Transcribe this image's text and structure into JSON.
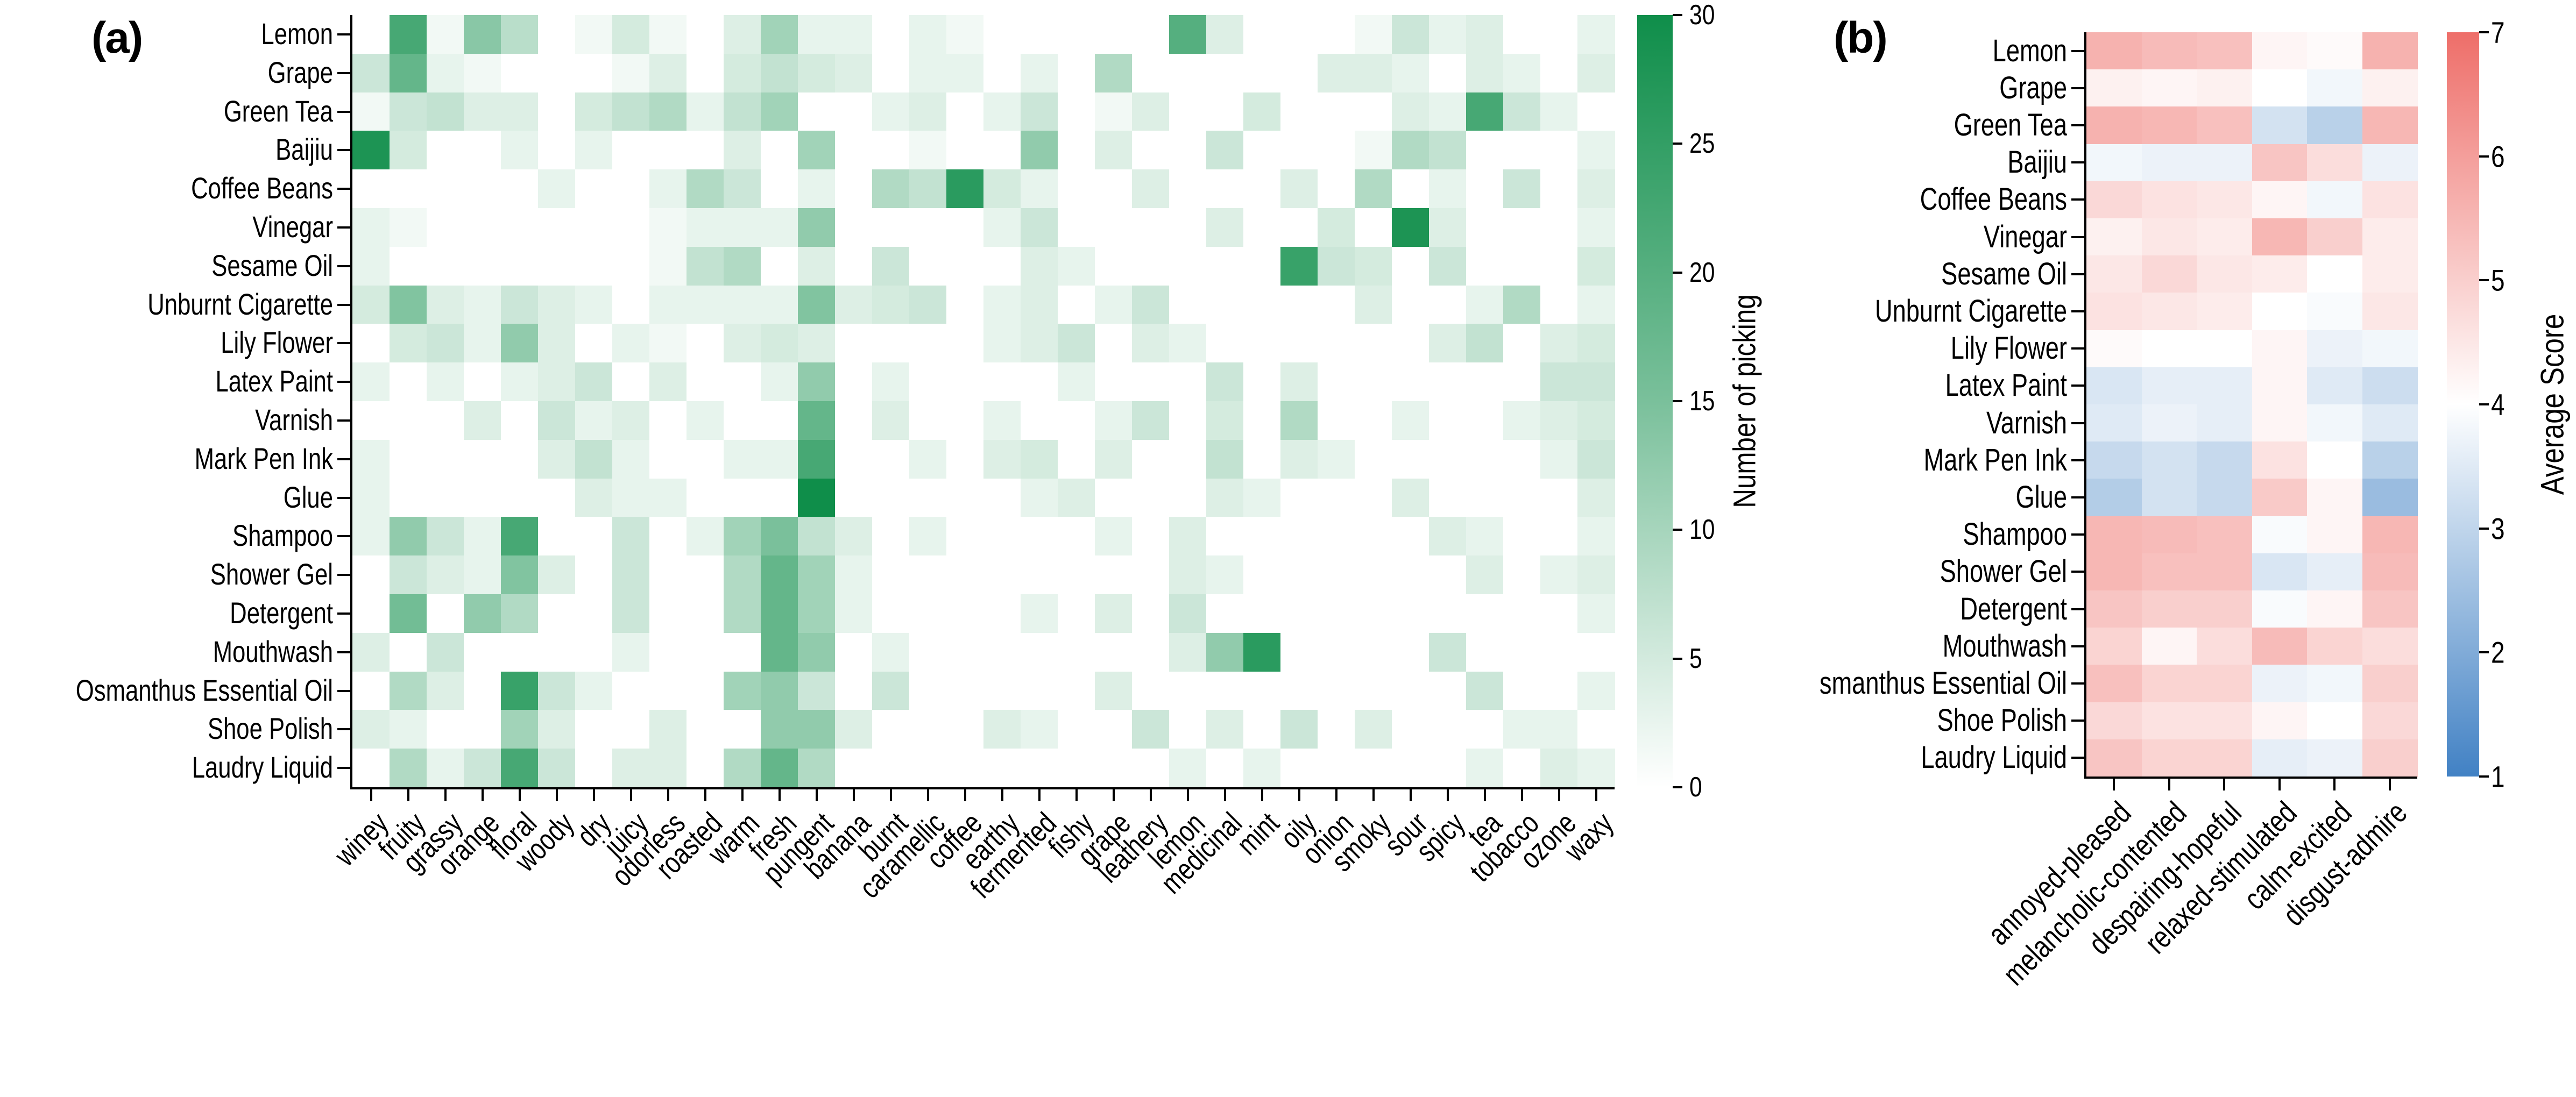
{
  "figure": {
    "background": "#ffffff",
    "text_color": "#000000"
  },
  "chart_data": [
    {
      "type": "heatmap",
      "panel_label": "(a)",
      "colorbar_title": "Number of picking",
      "colorbar_ticks": [
        30,
        25,
        20,
        15,
        10,
        5,
        0
      ],
      "vmin": 0,
      "vmax": 30,
      "colormap": {
        "low": "#ffffff",
        "high": "#0f8e4a"
      },
      "rows": [
        "Lemon",
        "Grape",
        "Green Tea",
        "Baijiu",
        "Coffee Beans",
        "Vinegar",
        "Sesame Oil",
        "Unburnt Cigarette",
        "Lily Flower",
        "Latex Paint",
        "Varnish",
        "Mark Pen Ink",
        "Glue",
        "Shampoo",
        "Shower Gel",
        "Detergent",
        "Mouthwash",
        "Osmanthus Essential Oil",
        "Shoe Polish",
        "Laudry Liquid"
      ],
      "columns": [
        "winey",
        "fruity",
        "grassy",
        "orange",
        "floral",
        "woody",
        "dry",
        "juicy",
        "odorless",
        "roasted",
        "warm",
        "fresh",
        "pungent",
        "banana",
        "burnt",
        "caramellic",
        "coffee",
        "earthy",
        "fermented",
        "fishy",
        "grape",
        "leathery",
        "lemon",
        "medicinal",
        "mint",
        "oily",
        "onion",
        "smoky",
        "sour",
        "spicy",
        "tea",
        "tobacco",
        "ozone",
        "waxy"
      ],
      "values": [
        [
          0,
          22,
          1,
          13,
          7,
          0,
          1,
          4,
          1,
          0,
          3,
          10,
          2,
          2,
          0,
          2,
          1,
          0,
          0,
          0,
          0,
          0,
          20,
          3,
          0,
          0,
          0,
          1,
          5,
          2,
          3,
          0,
          0,
          2
        ],
        [
          5,
          18,
          2,
          1,
          0,
          0,
          0,
          1,
          3,
          0,
          4,
          6,
          4,
          3,
          0,
          2,
          2,
          0,
          2,
          0,
          8,
          0,
          0,
          0,
          0,
          0,
          3,
          3,
          2,
          0,
          3,
          2,
          0,
          3
        ],
        [
          1,
          5,
          6,
          3,
          3,
          0,
          4,
          6,
          8,
          2,
          6,
          10,
          0,
          0,
          2,
          3,
          0,
          2,
          5,
          0,
          1,
          3,
          0,
          0,
          4,
          0,
          0,
          0,
          3,
          2,
          22,
          5,
          2,
          0
        ],
        [
          28,
          4,
          0,
          0,
          2,
          0,
          2,
          0,
          0,
          0,
          3,
          0,
          10,
          0,
          0,
          1,
          0,
          0,
          12,
          0,
          3,
          0,
          0,
          5,
          0,
          0,
          0,
          1,
          8,
          6,
          0,
          0,
          0,
          2
        ],
        [
          0,
          0,
          0,
          0,
          0,
          2,
          0,
          0,
          2,
          8,
          5,
          0,
          2,
          0,
          8,
          6,
          26,
          4,
          2,
          0,
          0,
          3,
          0,
          0,
          0,
          3,
          0,
          8,
          0,
          2,
          0,
          5,
          0,
          3
        ],
        [
          2,
          1,
          0,
          0,
          0,
          0,
          0,
          0,
          1,
          2,
          2,
          2,
          12,
          0,
          0,
          0,
          0,
          2,
          5,
          0,
          0,
          0,
          0,
          3,
          0,
          0,
          4,
          0,
          28,
          3,
          0,
          0,
          0,
          2
        ],
        [
          2,
          0,
          0,
          0,
          0,
          0,
          0,
          0,
          1,
          6,
          8,
          0,
          3,
          0,
          5,
          0,
          0,
          0,
          3,
          2,
          0,
          0,
          0,
          0,
          0,
          24,
          5,
          4,
          0,
          5,
          0,
          0,
          0,
          4
        ],
        [
          4,
          14,
          3,
          2,
          5,
          3,
          2,
          0,
          2,
          2,
          2,
          2,
          14,
          3,
          4,
          5,
          0,
          2,
          3,
          0,
          2,
          5,
          0,
          0,
          0,
          0,
          0,
          3,
          0,
          0,
          2,
          8,
          0,
          2
        ],
        [
          0,
          4,
          5,
          2,
          12,
          3,
          0,
          2,
          1,
          0,
          3,
          4,
          3,
          0,
          0,
          0,
          0,
          2,
          3,
          5,
          0,
          3,
          2,
          0,
          0,
          0,
          0,
          0,
          0,
          3,
          6,
          0,
          3,
          4
        ],
        [
          2,
          0,
          2,
          0,
          2,
          3,
          5,
          0,
          3,
          0,
          0,
          2,
          12,
          0,
          2,
          0,
          0,
          0,
          0,
          2,
          0,
          0,
          0,
          5,
          0,
          3,
          0,
          0,
          0,
          0,
          0,
          0,
          5,
          5
        ],
        [
          0,
          0,
          0,
          3,
          0,
          5,
          2,
          3,
          0,
          2,
          0,
          0,
          18,
          0,
          3,
          0,
          0,
          2,
          0,
          0,
          2,
          5,
          0,
          4,
          0,
          8,
          0,
          0,
          2,
          0,
          0,
          2,
          3,
          4
        ],
        [
          2,
          0,
          0,
          0,
          0,
          3,
          6,
          2,
          0,
          0,
          2,
          2,
          22,
          0,
          0,
          2,
          0,
          3,
          4,
          0,
          3,
          0,
          0,
          6,
          0,
          3,
          2,
          0,
          0,
          0,
          0,
          0,
          2,
          5
        ],
        [
          2,
          0,
          0,
          0,
          0,
          0,
          3,
          2,
          2,
          0,
          0,
          0,
          30,
          0,
          0,
          0,
          0,
          0,
          2,
          3,
          0,
          0,
          0,
          3,
          2,
          0,
          0,
          0,
          3,
          0,
          0,
          0,
          0,
          3
        ],
        [
          2,
          12,
          5,
          2,
          22,
          0,
          0,
          5,
          0,
          2,
          10,
          15,
          6,
          3,
          0,
          2,
          0,
          0,
          0,
          0,
          2,
          0,
          3,
          0,
          0,
          0,
          0,
          0,
          0,
          3,
          2,
          0,
          0,
          2
        ],
        [
          0,
          5,
          3,
          2,
          14,
          3,
          0,
          5,
          0,
          0,
          8,
          18,
          10,
          2,
          0,
          0,
          0,
          0,
          0,
          0,
          0,
          0,
          3,
          2,
          0,
          0,
          0,
          0,
          0,
          0,
          3,
          0,
          2,
          3
        ],
        [
          0,
          16,
          0,
          12,
          8,
          0,
          0,
          5,
          0,
          0,
          8,
          18,
          10,
          2,
          0,
          0,
          0,
          0,
          2,
          0,
          3,
          0,
          5,
          0,
          0,
          0,
          0,
          0,
          0,
          0,
          0,
          0,
          0,
          2
        ],
        [
          3,
          0,
          5,
          0,
          0,
          0,
          0,
          2,
          0,
          0,
          0,
          18,
          12,
          0,
          2,
          0,
          0,
          0,
          0,
          0,
          0,
          0,
          3,
          12,
          26,
          0,
          0,
          0,
          0,
          5,
          0,
          0,
          0,
          0
        ],
        [
          0,
          8,
          3,
          0,
          24,
          5,
          2,
          0,
          0,
          0,
          10,
          12,
          5,
          0,
          5,
          0,
          0,
          0,
          0,
          0,
          3,
          0,
          0,
          0,
          0,
          0,
          0,
          0,
          0,
          0,
          5,
          0,
          0,
          2
        ],
        [
          3,
          2,
          0,
          0,
          10,
          3,
          0,
          0,
          3,
          0,
          0,
          12,
          12,
          3,
          0,
          0,
          0,
          3,
          2,
          0,
          0,
          5,
          0,
          3,
          0,
          5,
          0,
          3,
          0,
          0,
          0,
          2,
          2,
          0
        ],
        [
          0,
          8,
          2,
          5,
          22,
          5,
          0,
          3,
          3,
          0,
          8,
          18,
          8,
          0,
          0,
          0,
          0,
          0,
          0,
          0,
          0,
          0,
          2,
          0,
          2,
          0,
          0,
          0,
          0,
          0,
          2,
          0,
          3,
          2
        ]
      ]
    },
    {
      "type": "heatmap",
      "panel_label": "(b)",
      "colorbar_title": "Average Score",
      "colorbar_ticks": [
        7,
        6,
        5,
        4,
        3,
        2,
        1
      ],
      "vmin": 1,
      "vmax": 7,
      "vmid": 4,
      "colormap": {
        "low": "#4181c4",
        "mid": "#ffffff",
        "high": "#ee6e69"
      },
      "rows": [
        "Lemon",
        "Grape",
        "Green Tea",
        "Baijiu",
        "Coffee Beans",
        "Vinegar",
        "Sesame Oil",
        "Unburnt Cigarette",
        "Lily Flower",
        "Latex Paint",
        "Varnish",
        "Mark Pen Ink",
        "Glue",
        "Shampoo",
        "Shower Gel",
        "Detergent",
        "Mouthwash",
        "smanthus Essential Oil",
        "Shoe Polish",
        "Laudry Liquid"
      ],
      "columns": [
        "annoyed-pleased",
        "melancholic-contented",
        "despairing-hopeful",
        "relaxed-stimulated",
        "calm-excited",
        "disgust-admire"
      ],
      "values": [
        [
          5.6,
          5.4,
          5.3,
          4.2,
          4.1,
          5.6
        ],
        [
          4.3,
          4.2,
          4.3,
          4.0,
          3.8,
          4.3
        ],
        [
          5.6,
          5.5,
          5.3,
          3.3,
          2.9,
          5.5
        ],
        [
          3.8,
          3.7,
          3.7,
          5.2,
          4.7,
          3.7
        ],
        [
          4.8,
          4.6,
          4.5,
          4.2,
          3.8,
          4.6
        ],
        [
          4.3,
          4.5,
          4.4,
          5.5,
          5.0,
          4.4
        ],
        [
          4.5,
          4.8,
          4.5,
          4.4,
          4.0,
          4.4
        ],
        [
          4.6,
          4.5,
          4.4,
          4.0,
          3.9,
          4.5
        ],
        [
          4.1,
          4.0,
          4.0,
          4.2,
          3.7,
          3.8
        ],
        [
          3.4,
          3.6,
          3.6,
          4.2,
          3.5,
          3.2
        ],
        [
          3.5,
          3.7,
          3.6,
          4.2,
          3.8,
          3.5
        ],
        [
          3.1,
          3.3,
          3.1,
          4.6,
          4.0,
          2.9
        ],
        [
          2.8,
          3.3,
          3.1,
          5.1,
          4.2,
          2.4
        ],
        [
          5.5,
          5.4,
          5.3,
          3.9,
          4.2,
          5.5
        ],
        [
          5.5,
          5.3,
          5.3,
          3.4,
          3.6,
          5.4
        ],
        [
          5.2,
          5.0,
          5.0,
          3.9,
          4.2,
          5.2
        ],
        [
          4.9,
          4.2,
          4.7,
          5.4,
          4.9,
          4.7
        ],
        [
          5.3,
          4.9,
          4.9,
          3.7,
          3.8,
          5.0
        ],
        [
          4.8,
          4.6,
          4.6,
          4.2,
          4.0,
          4.8
        ],
        [
          5.2,
          4.9,
          4.9,
          3.6,
          3.7,
          5.0
        ]
      ]
    }
  ]
}
